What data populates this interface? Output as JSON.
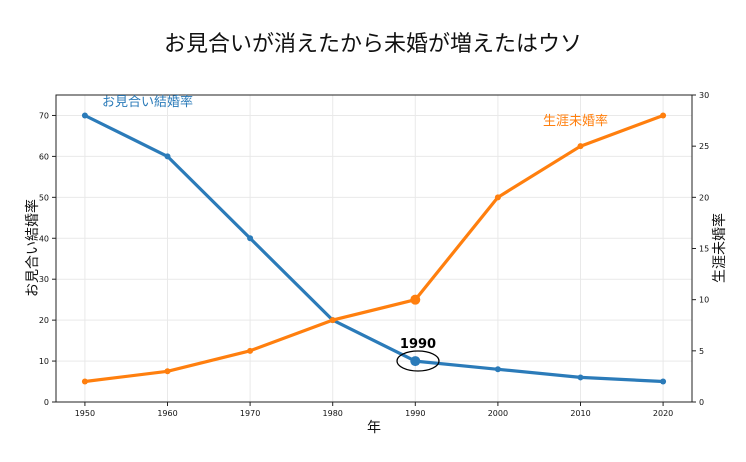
{
  "chart_data": {
    "type": "line",
    "title": "お見合いが消えたから未婚が増えたはウソ",
    "xlabel": "年",
    "ylabel_left": "お見合い結婚率",
    "ylabel_right": "生涯未婚率",
    "x": [
      1950,
      1960,
      1970,
      1980,
      1990,
      2000,
      2010,
      2020
    ],
    "xlim": [
      1946.5,
      2023.5
    ],
    "ylim_left": [
      0,
      75
    ],
    "ylim_right": [
      0,
      30
    ],
    "yticks_left": [
      0,
      10,
      20,
      30,
      40,
      50,
      60,
      70
    ],
    "yticks_right": [
      0,
      5,
      10,
      15,
      20,
      25,
      30
    ],
    "grid": true,
    "series": [
      {
        "name": "お見合い結婚率",
        "axis": "left",
        "color": "#2b7bb9",
        "values": [
          70,
          60,
          40,
          20,
          10,
          8,
          6,
          5
        ]
      },
      {
        "name": "生涯未婚率",
        "axis": "right",
        "color": "#ff7f0e",
        "values": [
          2,
          3,
          5,
          8,
          10,
          20,
          25,
          28
        ]
      }
    ],
    "annotation": {
      "text": "1990",
      "x": 1990
    }
  }
}
